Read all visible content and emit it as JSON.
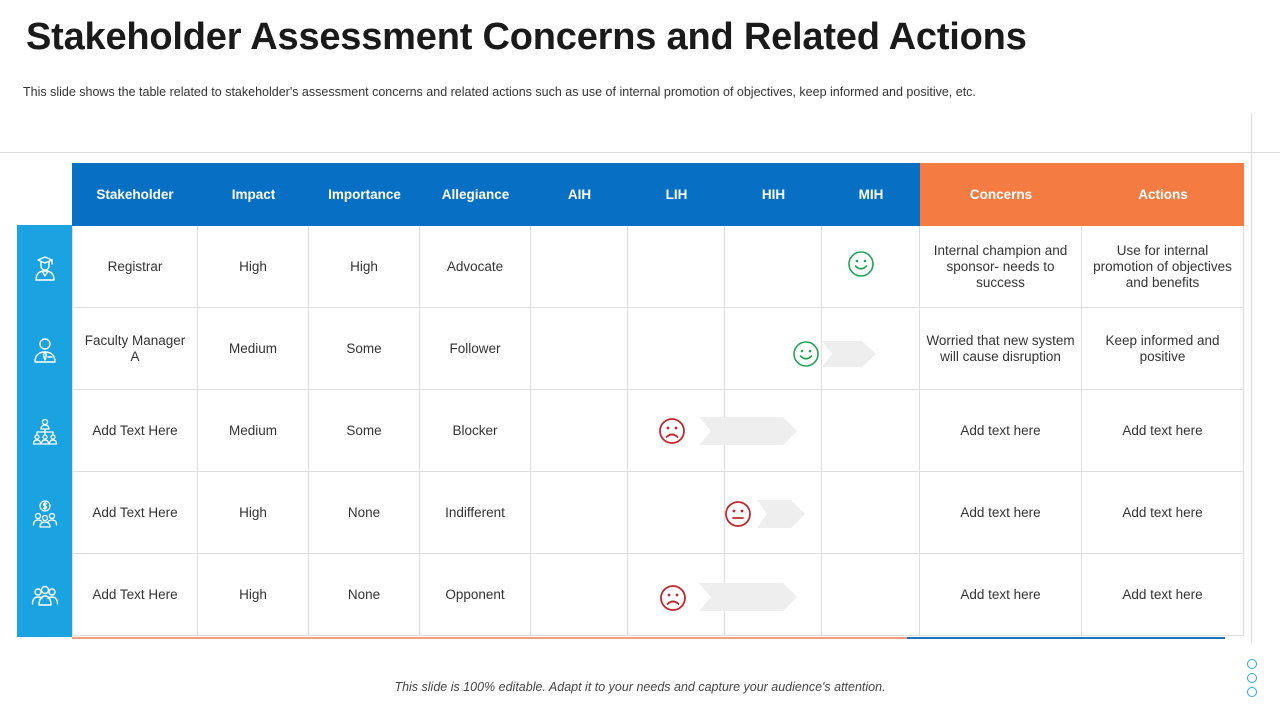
{
  "title": "Stakeholder Assessment Concerns and Related Actions",
  "subtitle": "This slide shows the table related to stakeholder's assessment concerns and related actions such as use of internal promotion of objectives, keep informed and positive, etc.",
  "table": {
    "headers": [
      "Stakeholder",
      "Impact",
      "Importance",
      "Allegiance",
      "AIH",
      "LIH",
      "HIH",
      "MIH",
      "Concerns",
      "Actions"
    ],
    "rows": [
      {
        "icon": "user-graduate-icon",
        "stakeholder": "Registrar",
        "impact": "High",
        "importance": "High",
        "allegiance": "Advocate",
        "concerns": "Internal champion and sponsor- needs to success",
        "actions": "Use for internal promotion of objectives and benefits",
        "marker": "smile-icon",
        "position": "MIH"
      },
      {
        "icon": "user-tie-icon",
        "stakeholder": "Faculty Manager A",
        "impact": "Medium",
        "importance": "Some",
        "allegiance": "Follower",
        "concerns": "Worried that new system will cause disruption",
        "actions": "Keep informed and positive",
        "marker": "smile-icon",
        "position": "HIH"
      },
      {
        "icon": "team-hierarchy-icon",
        "stakeholder": "Add Text Here",
        "impact": "Medium",
        "importance": "Some",
        "allegiance": "Blocker",
        "concerns": "Add text here",
        "actions": "Add text here",
        "marker": "frown-icon",
        "position": "LIH"
      },
      {
        "icon": "money-team-icon",
        "stakeholder": "Add Text Here",
        "impact": "High",
        "importance": "None",
        "allegiance": "Indifferent",
        "concerns": "Add text here",
        "actions": "Add text here",
        "marker": "neutral-face-icon",
        "position": "LIH"
      },
      {
        "icon": "group-icon",
        "stakeholder": "Add Text Here",
        "impact": "High",
        "importance": "None",
        "allegiance": "Opponent",
        "concerns": "Add text here",
        "actions": "Add text here",
        "marker": "frown-icon",
        "position": "LIH"
      }
    ]
  },
  "footer": "This slide is 100% editable. Adapt it to your needs and capture your audience's attention.",
  "colors": {
    "header_blue": "#0770c4",
    "header_orange": "#f47b42",
    "icon_bar": "#1aa3e0",
    "smile_green": "#23a455",
    "frown_red": "#c0282d"
  }
}
